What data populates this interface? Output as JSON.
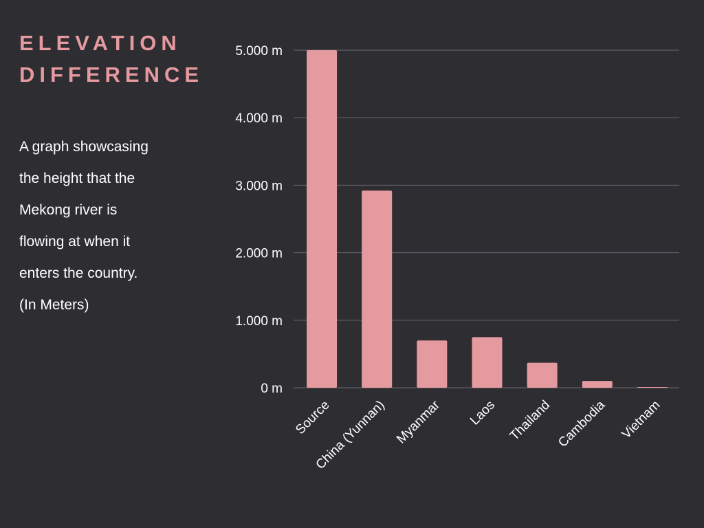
{
  "header": {
    "title_line1": "ELEVATION",
    "title_line2": "DIFFERENCE"
  },
  "description": {
    "lines": [
      "A graph showcasing",
      "the height that the",
      "Mekong river is",
      "flowing at when it",
      "enters the country.",
      "(In Meters)"
    ]
  },
  "colors": {
    "background": "#2e2d32",
    "bar": "#e59aa0",
    "title": "#e59aa0",
    "text": "#ffffff",
    "grid": "#6b6a70"
  },
  "chart_data": {
    "type": "bar",
    "categories": [
      "Source",
      "China (Yunnan)",
      "Myanmar",
      "Laos",
      "Thailand",
      "Cambodia",
      "Vietnam"
    ],
    "values": [
      5000,
      2920,
      700,
      750,
      370,
      100,
      10
    ],
    "ylim": [
      0,
      5000
    ],
    "yticks": [
      0,
      1000,
      2000,
      3000,
      4000,
      5000
    ],
    "ytick_labels": [
      "0 m",
      "1.000 m",
      "2.000 m",
      "3.000 m",
      "4.000 m",
      "5.000 m"
    ],
    "grid": true,
    "legend": "none"
  }
}
